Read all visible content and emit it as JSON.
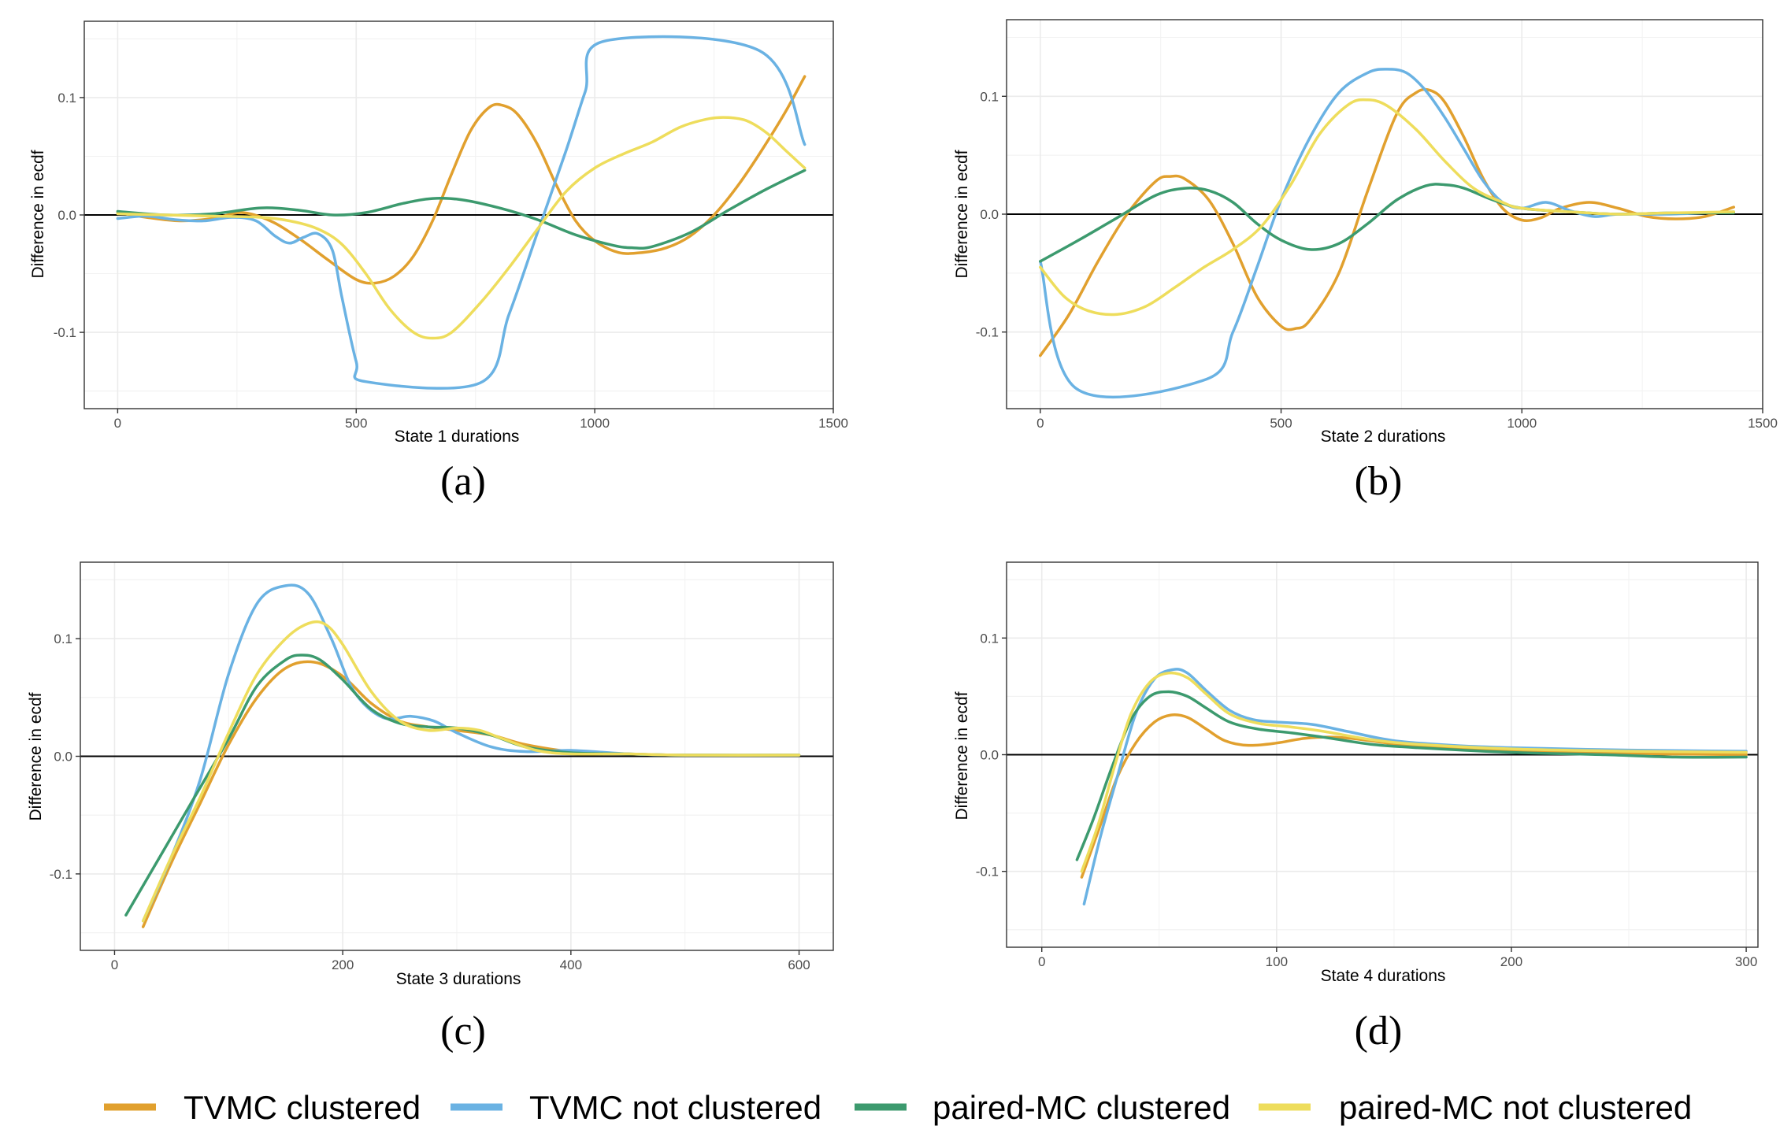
{
  "series_colors": {
    "TVMC clustered": "#E1A02E",
    "TVMC not clustered": "#6AB2E3",
    "paired-MC clustered": "#3C9A6E",
    "paired-MC not clustered": "#EEDD5C"
  },
  "legend": [
    "TVMC clustered",
    "TVMC not clustered",
    "paired-MC clustered",
    "paired-MC not clustered"
  ],
  "chart_data": [
    {
      "type": "line",
      "panel": "(a)",
      "xlabel": "State 1 durations",
      "ylabel": "Difference in ecdf",
      "xlim": [
        -70,
        1500
      ],
      "ylim": [
        -0.165,
        0.165
      ],
      "xticks": [
        0,
        500,
        1000,
        1500
      ],
      "xtick_labels": [
        "0",
        "500",
        "1000",
        "1500"
      ],
      "yticks": [
        -0.1,
        0.0,
        0.1
      ],
      "ytick_labels": [
        "-0.1",
        "0.0",
        "0.1"
      ],
      "hline": 0,
      "grid": true,
      "series": [
        {
          "name": "TVMC clustered",
          "x": [
            0,
            60,
            130,
            200,
            260,
            320,
            380,
            440,
            500,
            540,
            580,
            620,
            660,
            700,
            740,
            780,
            810,
            840,
            880,
            920,
            960,
            1000,
            1050,
            1100,
            1150,
            1200,
            1250,
            1300,
            1350,
            1400,
            1440
          ],
          "y": [
            0.002,
            -0.002,
            -0.005,
            -0.003,
            0.002,
            -0.005,
            -0.02,
            -0.038,
            -0.055,
            -0.058,
            -0.052,
            -0.035,
            -0.005,
            0.035,
            0.072,
            0.092,
            0.093,
            0.085,
            0.06,
            0.025,
            -0.005,
            -0.022,
            -0.032,
            -0.032,
            -0.028,
            -0.018,
            0.0,
            0.025,
            0.055,
            0.088,
            0.118
          ]
        },
        {
          "name": "TVMC not clustered",
          "x": [
            0,
            60,
            120,
            180,
            240,
            290,
            330,
            360,
            390,
            420,
            450,
            470,
            500,
            520,
            760,
            820,
            880,
            940,
            980,
            1020,
            1345,
            1440
          ],
          "y": [
            -0.003,
            -0.001,
            -0.004,
            -0.005,
            -0.002,
            -0.005,
            -0.018,
            -0.024,
            -0.019,
            -0.016,
            -0.03,
            -0.07,
            -0.125,
            -0.142,
            -0.143,
            -0.085,
            -0.015,
            0.055,
            0.105,
            0.148,
            0.14,
            0.06
          ]
        },
        {
          "name": "paired-MC clustered",
          "x": [
            0,
            100,
            200,
            300,
            380,
            450,
            520,
            600,
            660,
            720,
            800,
            880,
            960,
            1040,
            1080,
            1120,
            1200,
            1280,
            1360,
            1440
          ],
          "y": [
            0.003,
            0.0,
            0.001,
            0.006,
            0.004,
            0.0,
            0.002,
            0.01,
            0.014,
            0.013,
            0.006,
            -0.004,
            -0.017,
            -0.026,
            -0.028,
            -0.027,
            -0.015,
            0.004,
            0.022,
            0.038
          ]
        },
        {
          "name": "paired-MC not clustered",
          "x": [
            0,
            100,
            200,
            300,
            360,
            420,
            470,
            520,
            570,
            620,
            660,
            700,
            760,
            820,
            880,
            940,
            1000,
            1060,
            1120,
            1180,
            1240,
            1280,
            1320,
            1360,
            1400,
            1440
          ],
          "y": [
            0.001,
            0.0,
            -0.001,
            -0.002,
            -0.005,
            -0.012,
            -0.025,
            -0.05,
            -0.08,
            -0.1,
            -0.105,
            -0.1,
            -0.075,
            -0.045,
            -0.012,
            0.02,
            0.04,
            0.052,
            0.062,
            0.075,
            0.082,
            0.083,
            0.08,
            0.07,
            0.055,
            0.04
          ]
        }
      ]
    },
    {
      "type": "line",
      "panel": "(b)",
      "xlabel": "State 2 durations",
      "ylabel": "Difference in ecdf",
      "xlim": [
        -70,
        1500
      ],
      "ylim": [
        -0.165,
        0.165
      ],
      "xticks": [
        0,
        500,
        1000,
        1500
      ],
      "xtick_labels": [
        "0",
        "500",
        "1000",
        "1500"
      ],
      "yticks": [
        -0.1,
        0.0,
        0.1
      ],
      "ytick_labels": [
        "-0.1",
        "0.0",
        "0.1"
      ],
      "hline": 0,
      "grid": true,
      "series": [
        {
          "name": "TVMC clustered",
          "x": [
            0,
            60,
            120,
            180,
            240,
            270,
            300,
            350,
            400,
            450,
            500,
            530,
            560,
            620,
            680,
            740,
            780,
            810,
            840,
            880,
            920,
            960,
            1000,
            1040,
            1080,
            1140,
            1200,
            1260,
            1320,
            1380,
            1440
          ],
          "y": [
            -0.12,
            -0.085,
            -0.04,
            0.0,
            0.028,
            0.032,
            0.03,
            0.012,
            -0.025,
            -0.07,
            -0.095,
            -0.097,
            -0.09,
            -0.05,
            0.02,
            0.085,
            0.103,
            0.105,
            0.095,
            0.065,
            0.03,
            0.005,
            -0.005,
            -0.003,
            0.005,
            0.01,
            0.005,
            -0.002,
            -0.004,
            -0.002,
            0.006
          ]
        },
        {
          "name": "TVMC not clustered",
          "x": [
            0,
            75,
            345,
            400,
            450,
            500,
            560,
            620,
            680,
            720,
            760,
            800,
            840,
            880,
            920,
            960,
            1000,
            1050,
            1100,
            1150,
            1200,
            1300,
            1440
          ],
          "y": [
            -0.04,
            -0.148,
            -0.14,
            -0.1,
            -0.045,
            0.012,
            0.065,
            0.103,
            0.12,
            0.123,
            0.12,
            0.105,
            0.082,
            0.055,
            0.028,
            0.01,
            0.005,
            0.01,
            0.003,
            -0.002,
            0.0,
            0.0,
            0.002
          ]
        },
        {
          "name": "paired-MC clustered",
          "x": [
            0,
            80,
            160,
            240,
            300,
            350,
            400,
            450,
            500,
            560,
            620,
            680,
            740,
            800,
            840,
            880,
            940,
            1000,
            1100,
            1200,
            1300,
            1440
          ],
          "y": [
            -0.04,
            -0.022,
            -0.003,
            0.016,
            0.022,
            0.02,
            0.01,
            -0.008,
            -0.022,
            -0.03,
            -0.025,
            -0.008,
            0.012,
            0.024,
            0.025,
            0.022,
            0.012,
            0.005,
            0.002,
            0.0,
            0.001,
            0.001
          ]
        },
        {
          "name": "paired-MC not clustered",
          "x": [
            0,
            50,
            100,
            160,
            220,
            280,
            340,
            400,
            460,
            520,
            580,
            640,
            680,
            720,
            780,
            840,
            900,
            960,
            1000,
            1100,
            1200,
            1300,
            1440
          ],
          "y": [
            -0.045,
            -0.07,
            -0.082,
            -0.085,
            -0.078,
            -0.062,
            -0.045,
            -0.03,
            -0.01,
            0.025,
            0.068,
            0.093,
            0.097,
            0.092,
            0.072,
            0.045,
            0.022,
            0.01,
            0.005,
            0.002,
            0.0,
            0.001,
            0.002
          ]
        }
      ]
    },
    {
      "type": "line",
      "panel": "(c)",
      "xlabel": "State 3 durations",
      "ylabel": "Difference in ecdf",
      "xlim": [
        -30,
        630
      ],
      "ylim": [
        -0.165,
        0.165
      ],
      "xticks": [
        0,
        200,
        400,
        600
      ],
      "xtick_labels": [
        "0",
        "200",
        "400",
        "600"
      ],
      "yticks": [
        -0.1,
        0.0,
        0.1
      ],
      "ytick_labels": [
        "-0.1",
        "0.0",
        "0.1"
      ],
      "hline": 0,
      "grid": true,
      "series": [
        {
          "name": "TVMC clustered",
          "x": [
            25,
            50,
            75,
            100,
            125,
            150,
            175,
            200,
            225,
            250,
            275,
            300,
            330,
            360,
            400,
            450,
            500,
            600
          ],
          "y": [
            -0.145,
            -0.09,
            -0.04,
            0.01,
            0.05,
            0.075,
            0.08,
            0.068,
            0.045,
            0.03,
            0.025,
            0.022,
            0.018,
            0.01,
            0.004,
            0.002,
            0.001,
            0.001
          ]
        },
        {
          "name": "TVMC not clustered",
          "x": [
            25,
            50,
            75,
            100,
            125,
            150,
            170,
            190,
            210,
            235,
            260,
            280,
            300,
            330,
            360,
            400,
            450,
            500,
            600
          ],
          "y": [
            -0.14,
            -0.085,
            -0.02,
            0.07,
            0.13,
            0.145,
            0.138,
            0.1,
            0.055,
            0.033,
            0.034,
            0.03,
            0.02,
            0.008,
            0.004,
            0.005,
            0.002,
            0.001,
            0.001
          ]
        },
        {
          "name": "paired-MC clustered",
          "x": [
            10,
            40,
            70,
            100,
            125,
            150,
            165,
            180,
            200,
            225,
            250,
            275,
            300,
            330,
            360,
            400,
            450,
            500,
            600
          ],
          "y": [
            -0.135,
            -0.085,
            -0.035,
            0.015,
            0.06,
            0.082,
            0.086,
            0.082,
            0.065,
            0.04,
            0.028,
            0.025,
            0.024,
            0.018,
            0.008,
            0.003,
            0.002,
            0.001,
            0.001
          ]
        },
        {
          "name": "paired-MC not clustered",
          "x": [
            25,
            50,
            75,
            100,
            125,
            150,
            170,
            185,
            200,
            225,
            250,
            275,
            300,
            320,
            340,
            370,
            400,
            450,
            500,
            600
          ],
          "y": [
            -0.14,
            -0.085,
            -0.035,
            0.02,
            0.07,
            0.1,
            0.113,
            0.112,
            0.095,
            0.055,
            0.03,
            0.022,
            0.024,
            0.022,
            0.015,
            0.005,
            0.002,
            0.002,
            0.001,
            0.001
          ]
        }
      ]
    },
    {
      "type": "line",
      "panel": "(d)",
      "xlabel": "State 4 durations",
      "ylabel": "Difference in ecdf",
      "xlim": [
        -15,
        305
      ],
      "ylim": [
        -0.165,
        0.165
      ],
      "xticks": [
        0,
        100,
        200,
        300
      ],
      "xtick_labels": [
        "0",
        "100",
        "200",
        "300"
      ],
      "yticks": [
        -0.1,
        0.0,
        0.1
      ],
      "ytick_labels": [
        "-0.1",
        "0.0",
        "0.1"
      ],
      "hline": 0,
      "grid": true,
      "series": [
        {
          "name": "TVMC clustered",
          "x": [
            17,
            25,
            32,
            40,
            48,
            55,
            62,
            70,
            78,
            88,
            100,
            112,
            125,
            140,
            160,
            200,
            250,
            300
          ],
          "y": [
            -0.105,
            -0.06,
            -0.02,
            0.01,
            0.028,
            0.034,
            0.032,
            0.022,
            0.012,
            0.008,
            0.01,
            0.014,
            0.015,
            0.012,
            0.007,
            0.003,
            0.001,
            0.0
          ]
        },
        {
          "name": "TVMC not clustered",
          "x": [
            18,
            25,
            32,
            40,
            48,
            56,
            62,
            70,
            80,
            90,
            100,
            115,
            130,
            150,
            175,
            200,
            250,
            300
          ],
          "y": [
            -0.128,
            -0.07,
            -0.02,
            0.035,
            0.065,
            0.073,
            0.07,
            0.055,
            0.038,
            0.03,
            0.028,
            0.026,
            0.02,
            0.012,
            0.008,
            0.006,
            0.004,
            0.003
          ]
        },
        {
          "name": "paired-MC clustered",
          "x": [
            15,
            22,
            30,
            38,
            46,
            54,
            62,
            70,
            80,
            92,
            105,
            120,
            140,
            160,
            200,
            240,
            270,
            300
          ],
          "y": [
            -0.09,
            -0.055,
            -0.01,
            0.03,
            0.05,
            0.054,
            0.05,
            0.04,
            0.028,
            0.022,
            0.019,
            0.015,
            0.009,
            0.006,
            0.002,
            0.0,
            -0.002,
            -0.002
          ]
        },
        {
          "name": "paired-MC not clustered",
          "x": [
            17,
            24,
            31,
            38,
            46,
            54,
            62,
            70,
            80,
            92,
            105,
            120,
            140,
            160,
            200,
            250,
            300
          ],
          "y": [
            -0.1,
            -0.06,
            -0.01,
            0.035,
            0.062,
            0.07,
            0.066,
            0.052,
            0.035,
            0.027,
            0.024,
            0.02,
            0.013,
            0.009,
            0.005,
            0.003,
            0.002
          ]
        }
      ]
    }
  ]
}
